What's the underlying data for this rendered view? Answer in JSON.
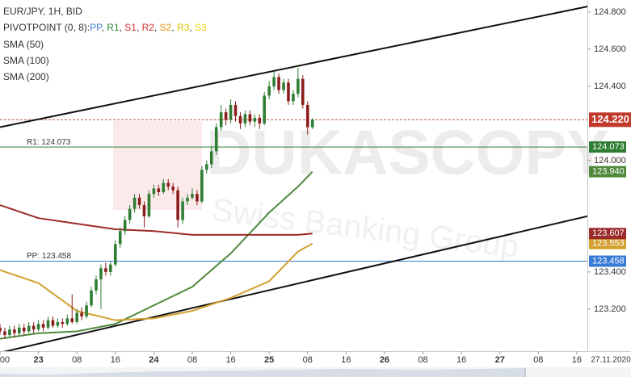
{
  "chart_data": {
    "type": "candlestick",
    "title": "EUR/JPY, 1H, BID",
    "indicator_legend": {
      "label": "PIVOTPOINT (0, 8):",
      "separator": ", ",
      "items": [
        {
          "name": "PP",
          "color": "#3a7bd5"
        },
        {
          "name": "R1",
          "color": "#2e8b2e"
        },
        {
          "name": "S1",
          "color": "#d32f2f"
        },
        {
          "name": "R2",
          "color": "#d32f2f"
        },
        {
          "name": "S2",
          "color": "#e69500"
        },
        {
          "name": "R3",
          "color": "#e0c000"
        },
        {
          "name": "S3",
          "color": "#e8d000"
        }
      ]
    },
    "watermark": "DUKASCOPY",
    "watermark_subtitle": "Swiss Banking Group",
    "up_color": "#2e7d32",
    "down_color": "#8b1c1c",
    "x": [
      -8,
      -7,
      -6,
      -5,
      -4,
      -3,
      -2,
      -1,
      0,
      1,
      2,
      3,
      4,
      5,
      6,
      7,
      8,
      9,
      10,
      11,
      12,
      13,
      14,
      15,
      16,
      17,
      18,
      19,
      20,
      21,
      22,
      23,
      24,
      25,
      26,
      27,
      28,
      29,
      30,
      31,
      32,
      33,
      34,
      35,
      36,
      37,
      38,
      39,
      40,
      41,
      42,
      43,
      44,
      45,
      46,
      47,
      48,
      49,
      50,
      51,
      52,
      53,
      54,
      55,
      56,
      57
    ],
    "open": [
      123.1,
      123.08,
      123.06,
      123.09,
      123.07,
      123.1,
      123.08,
      123.11,
      123.09,
      123.12,
      123.1,
      123.14,
      123.11,
      123.13,
      123.12,
      123.15,
      123.13,
      123.18,
      123.16,
      123.22,
      123.3,
      123.36,
      123.42,
      123.4,
      123.44,
      123.55,
      123.62,
      123.68,
      123.74,
      123.8,
      123.76,
      123.7,
      123.82,
      123.85,
      123.83,
      123.88,
      123.86,
      123.84,
      123.68,
      123.78,
      123.8,
      123.82,
      123.78,
      123.95,
      123.98,
      124.05,
      124.18,
      124.26,
      124.22,
      124.3,
      124.24,
      124.2,
      124.25,
      124.21,
      124.23,
      124.2,
      124.35,
      124.4,
      124.45,
      124.38,
      124.42,
      124.32,
      124.36,
      124.44,
      124.3,
      124.18
    ],
    "high": [
      123.12,
      123.1,
      123.11,
      123.11,
      123.12,
      123.12,
      123.13,
      123.13,
      123.14,
      123.14,
      123.16,
      123.16,
      123.15,
      123.15,
      123.17,
      123.28,
      123.2,
      123.21,
      123.24,
      123.32,
      123.38,
      123.44,
      123.45,
      123.46,
      123.57,
      123.64,
      123.7,
      123.76,
      123.82,
      123.82,
      123.78,
      123.84,
      123.87,
      123.87,
      123.9,
      123.9,
      123.88,
      123.86,
      123.8,
      123.82,
      123.85,
      123.84,
      123.97,
      124.0,
      124.08,
      124.2,
      124.3,
      124.28,
      124.33,
      124.32,
      124.26,
      124.27,
      124.27,
      124.25,
      124.25,
      124.37,
      124.43,
      124.48,
      124.47,
      124.44,
      124.44,
      124.38,
      124.5,
      124.46,
      124.32,
      124.23
    ],
    "low": [
      123.06,
      123.04,
      123.05,
      123.05,
      123.06,
      123.06,
      123.07,
      123.07,
      123.08,
      123.08,
      123.09,
      123.1,
      123.1,
      123.1,
      123.11,
      123.12,
      123.12,
      123.14,
      123.15,
      123.21,
      123.28,
      123.2,
      123.38,
      123.38,
      123.43,
      123.53,
      123.6,
      123.66,
      123.72,
      123.74,
      123.64,
      123.69,
      123.8,
      123.81,
      123.82,
      123.84,
      123.82,
      123.64,
      123.66,
      123.76,
      123.79,
      123.76,
      123.77,
      123.93,
      123.96,
      124.03,
      124.16,
      124.19,
      124.2,
      124.21,
      124.17,
      124.18,
      124.19,
      124.18,
      124.17,
      124.19,
      124.33,
      124.38,
      124.36,
      124.36,
      124.3,
      124.3,
      124.34,
      124.28,
      124.14,
      124.17
    ],
    "close": [
      123.08,
      123.06,
      123.09,
      123.07,
      123.1,
      123.08,
      123.11,
      123.09,
      123.12,
      123.1,
      123.14,
      123.11,
      123.13,
      123.12,
      123.15,
      123.13,
      123.18,
      123.16,
      123.22,
      123.3,
      123.36,
      123.42,
      123.4,
      123.44,
      123.55,
      123.62,
      123.68,
      123.74,
      123.8,
      123.76,
      123.7,
      123.82,
      123.85,
      123.83,
      123.88,
      123.86,
      123.84,
      123.68,
      123.78,
      123.8,
      123.82,
      123.78,
      123.95,
      123.98,
      124.05,
      124.18,
      124.26,
      124.22,
      124.3,
      124.24,
      124.2,
      124.25,
      124.21,
      124.23,
      124.2,
      124.35,
      124.4,
      124.45,
      124.38,
      124.42,
      124.32,
      124.36,
      124.44,
      124.3,
      124.18,
      124.22
    ],
    "series": [
      {
        "name": "SMA (50)",
        "color": "#4f8a3c",
        "x": [
          -8,
          0,
          8,
          16,
          24,
          32,
          40,
          48,
          54,
          57
        ],
        "values": [
          123.04,
          123.07,
          123.08,
          123.12,
          123.22,
          123.32,
          123.5,
          123.72,
          123.86,
          123.94
        ],
        "last_label": "123.940"
      },
      {
        "name": "SMA (100)",
        "color": "#d4a030",
        "x": [
          -8,
          0,
          8,
          16,
          24,
          32,
          40,
          48,
          54,
          57
        ],
        "values": [
          123.41,
          123.34,
          123.19,
          123.14,
          123.15,
          123.19,
          123.26,
          123.35,
          123.51,
          123.553
        ],
        "last_label": "123.553"
      },
      {
        "name": "SMA (200)",
        "color": "#9b2a2a",
        "x": [
          -8,
          0,
          8,
          16,
          24,
          32,
          40,
          48,
          54,
          57
        ],
        "values": [
          123.76,
          123.69,
          123.66,
          123.63,
          123.62,
          123.6,
          123.6,
          123.6,
          123.6,
          123.607
        ],
        "last_label": "123.607"
      }
    ],
    "trend_lines": [
      {
        "color": "#111111",
        "x": [
          -8,
          114.2
        ],
        "values": [
          124.18,
          124.83
        ]
      },
      {
        "color": "#111111",
        "x": [
          -8,
          114.2
        ],
        "values": [
          122.965,
          123.7
        ]
      }
    ],
    "levels": [
      {
        "value": 124.073,
        "label": "R1: 124.073",
        "axis_label": "124.073",
        "color": "#2e7d32"
      },
      {
        "value": 123.458,
        "label": "PP: 123.458",
        "axis_label": "123.458",
        "color": "#3a7bd5"
      }
    ],
    "current": {
      "value": 124.22,
      "axis_label": "124.220",
      "color": "#c0392b"
    },
    "xlim": [
      -8,
      114.2
    ],
    "ylim": [
      122.995,
      124.865
    ],
    "xticks": [
      {
        "value": -8,
        "label": "00"
      },
      {
        "value": 0,
        "label": "23"
      },
      {
        "value": 8,
        "label": "08"
      },
      {
        "value": 16,
        "label": "16"
      },
      {
        "value": 24,
        "label": "24"
      },
      {
        "value": 32,
        "label": "08"
      },
      {
        "value": 40,
        "label": "16"
      },
      {
        "value": 48,
        "label": "25"
      },
      {
        "value": 56,
        "label": "08"
      },
      {
        "value": 64,
        "label": "16"
      },
      {
        "value": 72,
        "label": "26"
      },
      {
        "value": 80,
        "label": "08"
      },
      {
        "value": 88,
        "label": "16"
      },
      {
        "value": 96,
        "label": "27"
      },
      {
        "value": 104,
        "label": "08"
      },
      {
        "value": 112,
        "label": "16"
      }
    ],
    "yticks": [
      {
        "value": 124.8,
        "label": "124.800"
      },
      {
        "value": 124.6,
        "label": "124.600"
      },
      {
        "value": 124.4,
        "label": "124.400"
      },
      {
        "value": 124.0,
        "label": "124.000"
      },
      {
        "value": 123.4,
        "label": "123.400"
      },
      {
        "value": 123.2,
        "label": "123.200"
      }
    ],
    "date_label": "27.11.2020"
  }
}
